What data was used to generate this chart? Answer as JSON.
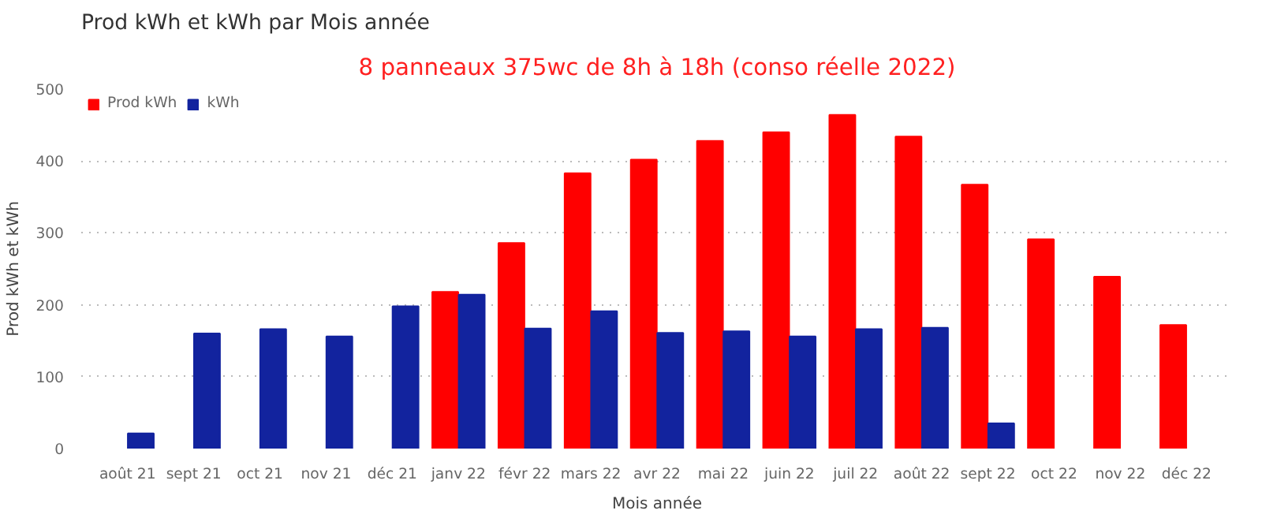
{
  "chart_data": {
    "type": "bar",
    "title": "Prod kWh et kWh par Mois année",
    "xlabel": "Mois année",
    "ylabel": "Prod kWh et kWh",
    "annotations": [
      "8 panneaux 375wc de 8h à 18h (conso réelle 2022)"
    ],
    "categories": [
      "août 21",
      "sept 21",
      "oct 21",
      "nov 21",
      "déc 21",
      "janv 22",
      "févr 22",
      "mars 22",
      "avr 22",
      "mai 22",
      "juin 22",
      "juil 22",
      "août 22",
      "sept 22",
      "oct 22",
      "nov 22",
      "déc 22"
    ],
    "series": [
      {
        "name": "Prod kWh",
        "color": "#ff0000",
        "values": [
          null,
          null,
          null,
          null,
          null,
          218,
          286,
          383,
          402,
          428,
          440,
          464,
          434,
          367,
          291,
          239,
          172
        ]
      },
      {
        "name": "kWh",
        "color": "#12239e",
        "values": [
          21,
          160,
          166,
          156,
          198,
          214,
          167,
          191,
          161,
          163,
          156,
          166,
          168,
          35,
          null,
          null,
          null
        ]
      }
    ],
    "ylim": [
      0,
      500
    ],
    "yticks": [
      0,
      100,
      200,
      300,
      400,
      500
    ],
    "grid": "y",
    "legend": "top left"
  }
}
